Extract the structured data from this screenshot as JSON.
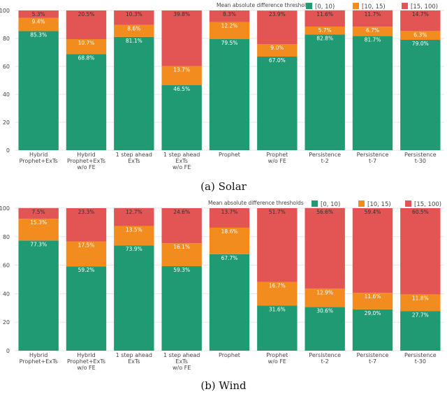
{
  "chart_data": [
    {
      "type": "bar",
      "stacked": true,
      "caption": "(a) Solar",
      "legend_title": "Mean absolute difference thresholds",
      "ylim": [
        0,
        100
      ],
      "yticks": [
        "0",
        "20",
        "40",
        "60",
        "80",
        "100"
      ],
      "categories": [
        [
          "Hybrid",
          "Prophet+ExTs"
        ],
        [
          "Hybrid",
          "Prophet+ExTs",
          "w/o FE"
        ],
        [
          "1 step ahead",
          "ExTs"
        ],
        [
          "1 step ahead",
          "ExTs",
          "w/o FE"
        ],
        [
          "Prophet"
        ],
        [
          "Prophet",
          "w/o FE"
        ],
        [
          "Persistence",
          "t-2"
        ],
        [
          "Persistence",
          "t-7"
        ],
        [
          "Persistence",
          "t-30"
        ]
      ],
      "series": [
        {
          "name": "[0, 10)",
          "color": "#1f9a72",
          "values": [
            85.3,
            68.8,
            81.1,
            46.5,
            79.5,
            67.0,
            82.8,
            81.7,
            79.0
          ],
          "labels": [
            "85.3%",
            "68.8%",
            "81.1%",
            "46.5%",
            "79.5%",
            "67.0%",
            "82.8%",
            "81.7%",
            "79.0%"
          ]
        },
        {
          "name": "[10, 15)",
          "color": "#f28c1e",
          "values": [
            9.4,
            10.7,
            8.6,
            13.7,
            12.2,
            9.0,
            5.7,
            6.7,
            6.3
          ],
          "labels": [
            "9.4%",
            "10.7%",
            "8.6%",
            "13.7%",
            "12.2%",
            "9.0%",
            "5.7%",
            "6.7%",
            "6.3%"
          ]
        },
        {
          "name": "[15, 100)",
          "color": "#e35454",
          "values": [
            5.3,
            20.5,
            10.3,
            39.8,
            8.3,
            23.9,
            11.6,
            11.7,
            14.7
          ],
          "labels": [
            "5.3%",
            "20.5%",
            "10.3%",
            "39.8%",
            "8.3%",
            "23.9%",
            "11.6%",
            "11.7%",
            "14.7%"
          ]
        }
      ]
    },
    {
      "type": "bar",
      "stacked": true,
      "caption": "(b) Wind",
      "legend_title": "Mean absolute difference thresholds",
      "ylim": [
        0,
        100
      ],
      "yticks": [
        "0",
        "20",
        "40",
        "60",
        "80",
        "100"
      ],
      "categories": [
        [
          "Hybrid",
          "Prophet+ExTs"
        ],
        [
          "Hybrid",
          "Prophet+ExTs",
          "w/o FE"
        ],
        [
          "1 step ahead",
          "ExTs"
        ],
        [
          "1 step ahead",
          "ExTs",
          "w/o FE"
        ],
        [
          "Prophet"
        ],
        [
          "Prophet",
          "w/o FE"
        ],
        [
          "Persistence",
          "t-2"
        ],
        [
          "Persistence",
          "t-7"
        ],
        [
          "Persistence",
          "t-30"
        ]
      ],
      "series": [
        {
          "name": "[0, 10)",
          "color": "#1f9a72",
          "values": [
            77.3,
            59.2,
            73.9,
            59.3,
            67.7,
            31.6,
            30.6,
            29.0,
            27.7
          ],
          "labels": [
            "77.3%",
            "59.2%",
            "73.9%",
            "59.3%",
            "67.7%",
            "31.6%",
            "30.6%",
            "29.0%",
            "27.7%"
          ]
        },
        {
          "name": "[10, 15)",
          "color": "#f28c1e",
          "values": [
            15.3,
            17.5,
            13.5,
            16.1,
            18.6,
            16.7,
            12.9,
            11.6,
            11.8
          ],
          "labels": [
            "15.3%",
            "17.5%",
            "13.5%",
            "16.1%",
            "18.6%",
            "16.7%",
            "12.9%",
            "11.6%",
            "11.8%"
          ]
        },
        {
          "name": "[15, 100)",
          "color": "#e35454",
          "values": [
            7.5,
            23.3,
            12.7,
            24.6,
            13.7,
            51.7,
            56.6,
            59.4,
            60.5
          ],
          "labels": [
            "7.5%",
            "23.3%",
            "12.7%",
            "24.6%",
            "13.7%",
            "51.7%",
            "56.6%",
            "59.4%",
            "60.5%"
          ]
        }
      ]
    }
  ]
}
